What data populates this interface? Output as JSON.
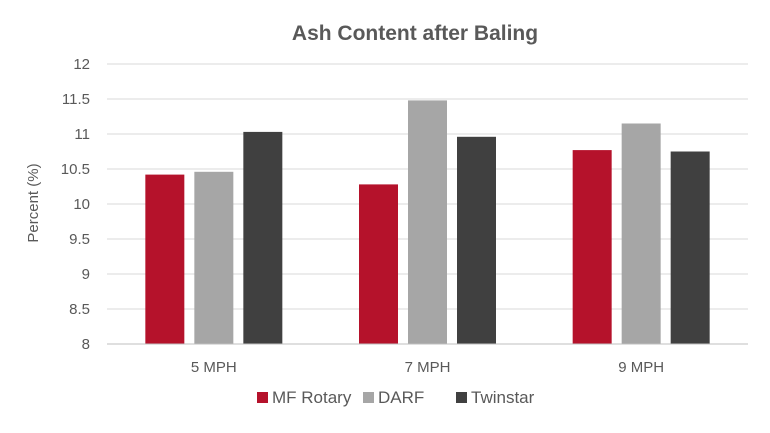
{
  "chart_data": {
    "type": "bar",
    "title": "Ash Content after Baling",
    "xlabel": "",
    "ylabel": "Percent (%)",
    "ylim": [
      8,
      12
    ],
    "y_ticks": [
      "8",
      "8.5",
      "9",
      "9.5",
      "10",
      "10.5",
      "11",
      "11.5",
      "12"
    ],
    "categories": [
      "5 MPH",
      "7 MPH",
      "9 MPH"
    ],
    "series": [
      {
        "name": "MF Rotary",
        "color": "#b5122b",
        "values": [
          10.42,
          10.28,
          10.77
        ]
      },
      {
        "name": "DARF",
        "color": "#a6a6a6",
        "values": [
          10.46,
          11.48,
          11.15
        ]
      },
      {
        "name": "Twinstar",
        "color": "#404040",
        "values": [
          11.03,
          10.96,
          10.75
        ]
      }
    ],
    "grid": true,
    "legend_position": "bottom"
  }
}
